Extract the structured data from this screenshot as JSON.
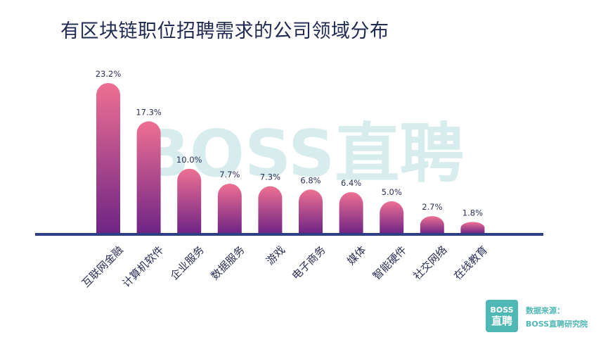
{
  "title": "有区块链职位招聘需求的公司领域分布",
  "watermark": "BOSS直聘",
  "logo": {
    "line1": "BOSS",
    "line2": "直聘"
  },
  "source": {
    "label": "数据来源：",
    "name": "BOSS直聘研究院"
  },
  "colors": {
    "bar_top": "#ee7093",
    "bar_bottom": "#6e2485",
    "baseline": "#2f3f86",
    "accent": "#4fb8b5"
  },
  "chart_data": {
    "type": "bar",
    "categories": [
      "互联网金融",
      "计算机软件",
      "企业服务",
      "数据服务",
      "游戏",
      "电子商务",
      "媒体",
      "智能硬件",
      "社交网络",
      "在线教育"
    ],
    "values": [
      23.2,
      17.3,
      10.0,
      7.7,
      7.3,
      6.8,
      6.4,
      5.0,
      2.7,
      1.8
    ],
    "value_labels": [
      "23.2%",
      "17.3%",
      "10.0%",
      "7.7%",
      "7.3%",
      "6.8%",
      "6.4%",
      "5.0%",
      "2.7%",
      "1.8%"
    ],
    "unit": "%",
    "title": "有区块链职位招聘需求的公司领域分布",
    "xlabel": "",
    "ylabel": "",
    "ylim": [
      0,
      23.2
    ],
    "grid": false,
    "legend": "none"
  }
}
